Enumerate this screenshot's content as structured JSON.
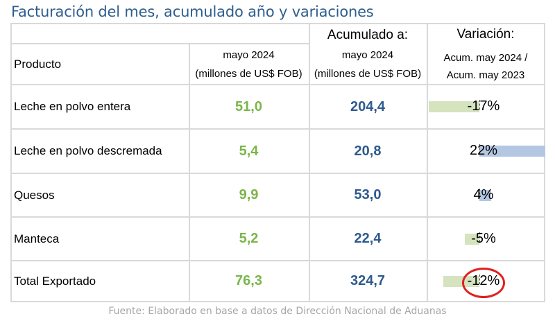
{
  "title": "Facturación del mes, acumulado año y variaciones",
  "header": {
    "col1": "Producto",
    "col2_line1": "mayo 2024",
    "col2_line2": "(millones de US$ FOB)",
    "col3_top": "Acumulado a:",
    "col3_line1": "mayo 2024",
    "col3_line2": "(millones de US$ FOB)",
    "col4_top": "Variación:",
    "col4_line1": "Acum. may 2024 /",
    "col4_line2": "Acum. may 2023"
  },
  "rows": [
    {
      "product": "Leche en polvo entera",
      "month": "51,0",
      "accum": "204,4",
      "variation": "-17%",
      "variation_value": -17
    },
    {
      "product": "Leche en polvo descremada",
      "month": "5,4",
      "accum": "20,8",
      "variation": "22%",
      "variation_value": 22
    },
    {
      "product": "Quesos",
      "month": "9,9",
      "accum": "53,0",
      "variation": "4%",
      "variation_value": 4
    },
    {
      "product": "Manteca",
      "month": "5,2",
      "accum": "22,4",
      "variation": "-5%",
      "variation_value": -5
    },
    {
      "product": "Total Exportado",
      "month": "76,3",
      "accum": "324,7",
      "variation": "-12%",
      "variation_value": -12,
      "highlighted": true
    }
  ],
  "colors": {
    "title": "#2e5e8e",
    "month_values": "#7ab648",
    "accum_values": "#2e5a8e",
    "negative_bar": "#d5e3bf",
    "positive_bar": "#b4c7e2",
    "highlight_circle": "#e02020"
  },
  "source": "Fuente: Elaborado en base a datos de Dirección Nacional de Aduanas"
}
